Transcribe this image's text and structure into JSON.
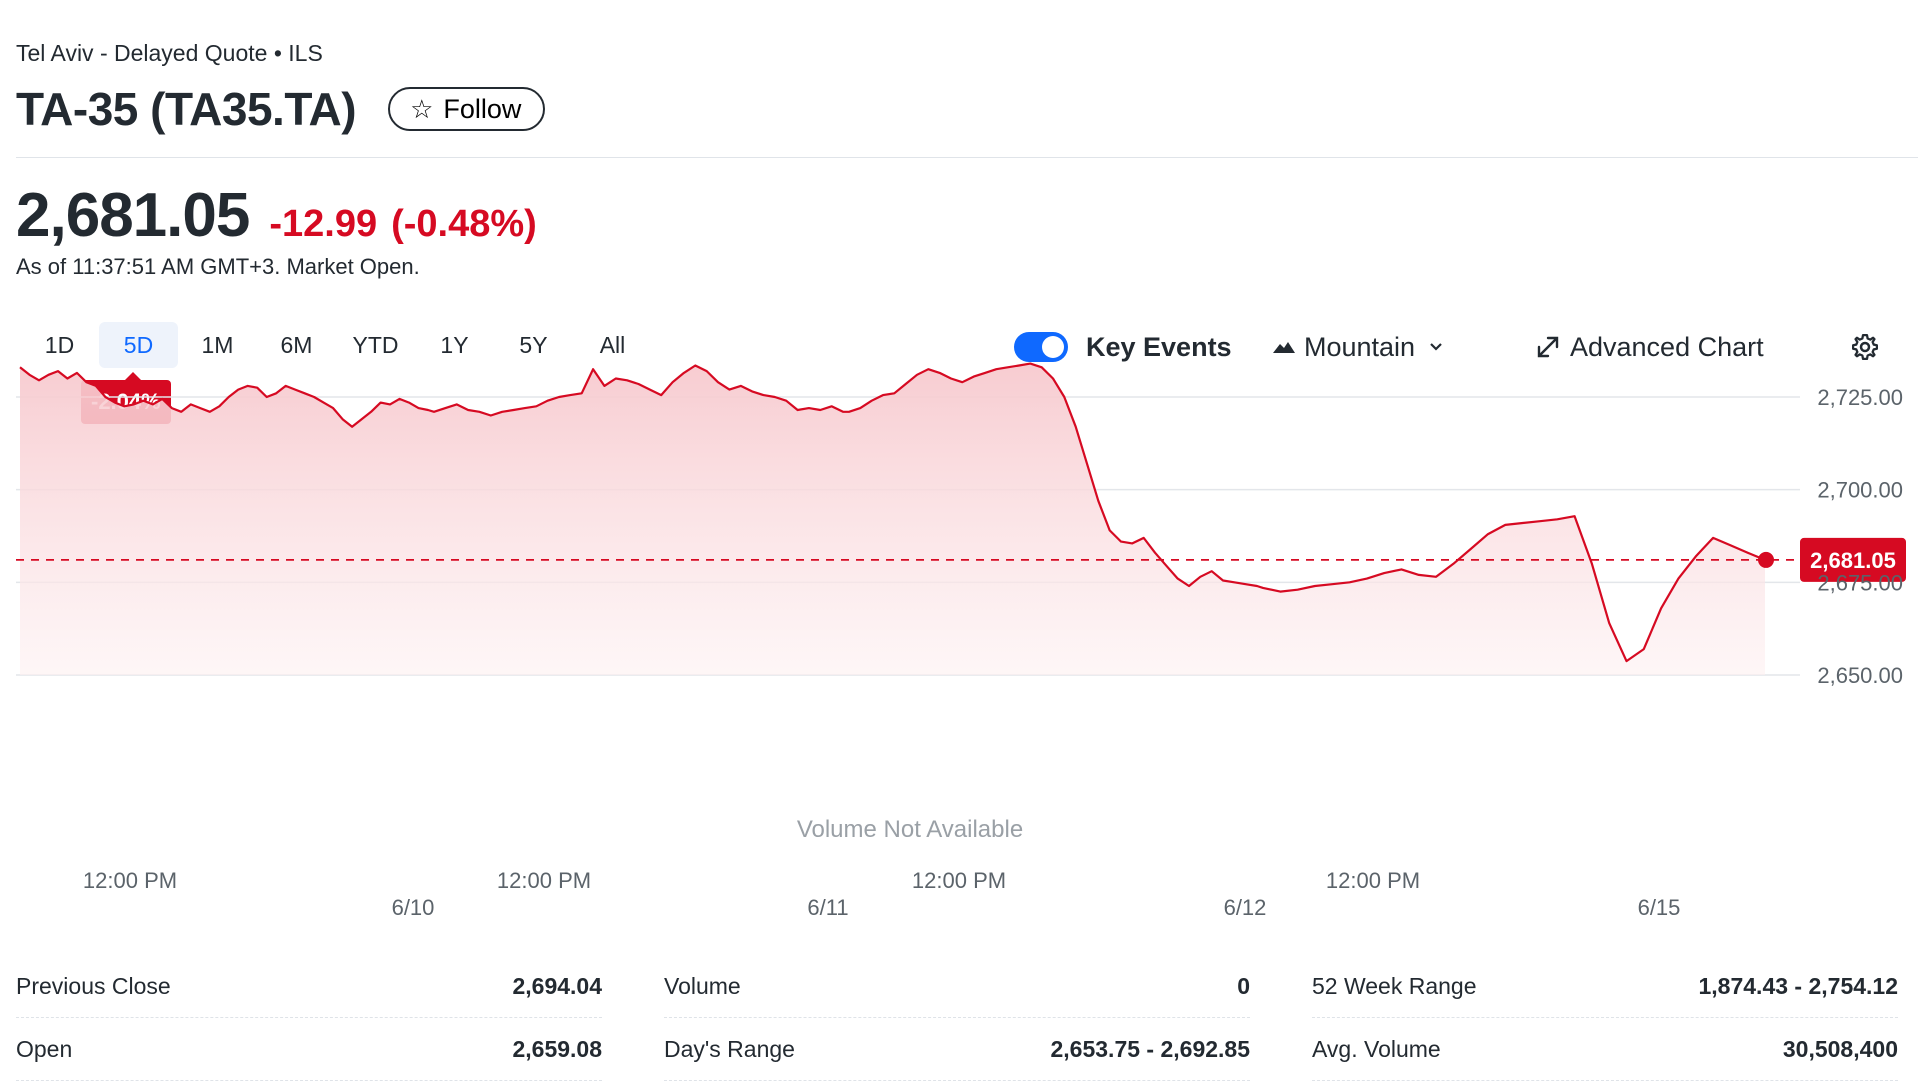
{
  "header": {
    "exchange": "Tel Aviv - Delayed Quote • ILS",
    "title": "TA-35 (TA35.TA)",
    "follow_label": "Follow"
  },
  "quote": {
    "price": "2,681.05",
    "change": "-12.99",
    "change_pct": "(-0.48%)",
    "as_of": "As of 11:37:51 AM GMT+3. Market Open."
  },
  "ranges": [
    "1D",
    "5D",
    "1M",
    "6M",
    "YTD",
    "1Y",
    "5Y",
    "All"
  ],
  "active_range": "5D",
  "range_change_badge": "-2.04%",
  "toolbar": {
    "key_events_label": "Key Events",
    "key_events_on": true,
    "chart_type_label": "Mountain",
    "advanced_label": "Advanced Chart"
  },
  "colors": {
    "negative": "#d60a22",
    "accent": "#0f69ff",
    "area_fill": "#f9d4d8"
  },
  "chart_data": {
    "type": "area",
    "y_ticks": [
      2650,
      2675,
      2700,
      2725
    ],
    "y_tick_labels": [
      "2,650.00",
      "2,675.00",
      "2,700.00",
      "2,725.00"
    ],
    "ylim": [
      2648,
      2738
    ],
    "current_value": 2681.05,
    "current_label": "2,681.05",
    "overlay_text": "Volume Not Available",
    "x_time_labels": [
      "12:00 PM",
      "12:00 PM",
      "12:00 PM",
      "12:00 PM"
    ],
    "x_date_labels": [
      "6/10",
      "6/11",
      "6/12",
      "6/15"
    ],
    "days": [
      [
        2733.0,
        2731.0,
        2729.5,
        2731.0,
        2732.0,
        2730.0,
        2731.5,
        2729.0,
        2728.0,
        2725.0,
        2723.5,
        2722.5,
        2723.0,
        2724.0,
        2723.0,
        2724.5,
        2722.0,
        2721.0,
        2723.0,
        2722.0,
        2721.0,
        2722.5,
        2725.0,
        2727.0,
        2728.0,
        2727.5,
        2725.0,
        2726.0,
        2728.0,
        2727.0,
        2726.0,
        2725.0,
        2723.5,
        2722.0,
        2719.0,
        2717.0,
        2719.0,
        2721.0,
        2723.5,
        2723.0,
        2724.5,
        2723.5,
        2722.0,
        2721.5
      ],
      [
        2721.0,
        2722.0,
        2723.0,
        2721.5,
        2721.0,
        2720.0,
        2721.0,
        2721.5,
        2722.0,
        2722.5,
        2724.0,
        2725.0,
        2725.5,
        2726.0,
        2732.5,
        2728.0,
        2730.0,
        2729.5,
        2728.5,
        2727.0,
        2725.5,
        2729.0,
        2731.5,
        2733.5,
        2732.0,
        2729.0,
        2727.0,
        2728.0,
        2726.5,
        2725.5,
        2725.0,
        2724.0,
        2721.5,
        2722.0,
        2721.5,
        2722.5,
        2721.0
      ],
      [
        2721.0,
        2722.0,
        2724.0,
        2725.5,
        2726.0,
        2728.5,
        2731.0,
        2732.5,
        2731.5,
        2730.0,
        2729.0,
        2730.5,
        2731.5,
        2732.5,
        2733.0,
        2733.5,
        2734.0,
        2733.0,
        2730.0,
        2725.0,
        2717.0,
        2707.0,
        2697.0,
        2689.0,
        2686.0,
        2685.5,
        2687.0,
        2683.0,
        2679.5,
        2676.0,
        2674.0,
        2676.5,
        2678.0,
        2675.5,
        2675.0,
        2674.5,
        2674.0
      ],
      [
        2673.5,
        2672.5,
        2673.0,
        2674.0,
        2674.5,
        2675.0,
        2676.0,
        2677.5,
        2678.5,
        2677.0,
        2676.5,
        2680.0,
        2684.0,
        2688.0,
        2690.5,
        2691.0,
        2691.5,
        2692.0,
        2692.85,
        2680.0,
        2664.0,
        2653.75,
        2657.0,
        2668.0,
        2676.0,
        2682.0,
        2687.0,
        2685.0,
        2683.0,
        2681.05
      ]
    ]
  },
  "stats": [
    [
      {
        "label": "Previous Close",
        "value": "2,694.04"
      },
      {
        "label": "Open",
        "value": "2,659.08"
      }
    ],
    [
      {
        "label": "Volume",
        "value": "0"
      },
      {
        "label": "Day's Range",
        "value": "2,653.75 - 2,692.85"
      }
    ],
    [
      {
        "label": "52 Week Range",
        "value": "1,874.43 - 2,754.12"
      },
      {
        "label": "Avg. Volume",
        "value": "30,508,400"
      }
    ]
  ]
}
